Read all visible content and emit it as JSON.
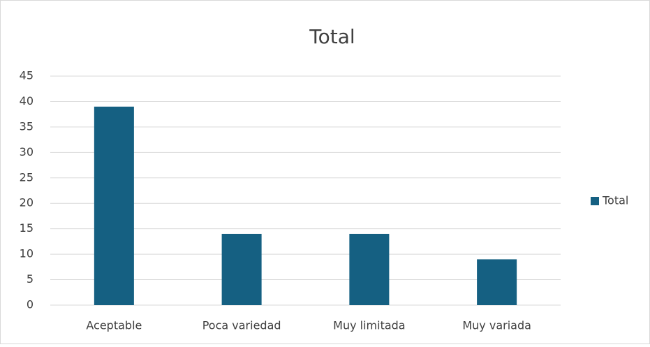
{
  "chart_data": {
    "type": "bar",
    "title": "Total",
    "categories": [
      "Aceptable",
      "Poca variedad",
      "Muy limitada",
      "Muy variada"
    ],
    "series": [
      {
        "name": "Total",
        "color": "#156082",
        "values": [
          39,
          14,
          14,
          9
        ]
      }
    ],
    "ylim": [
      0,
      45
    ],
    "yticks": [
      0,
      5,
      10,
      15,
      20,
      25,
      30,
      35,
      40,
      45
    ],
    "grid": true,
    "legend": "right"
  }
}
